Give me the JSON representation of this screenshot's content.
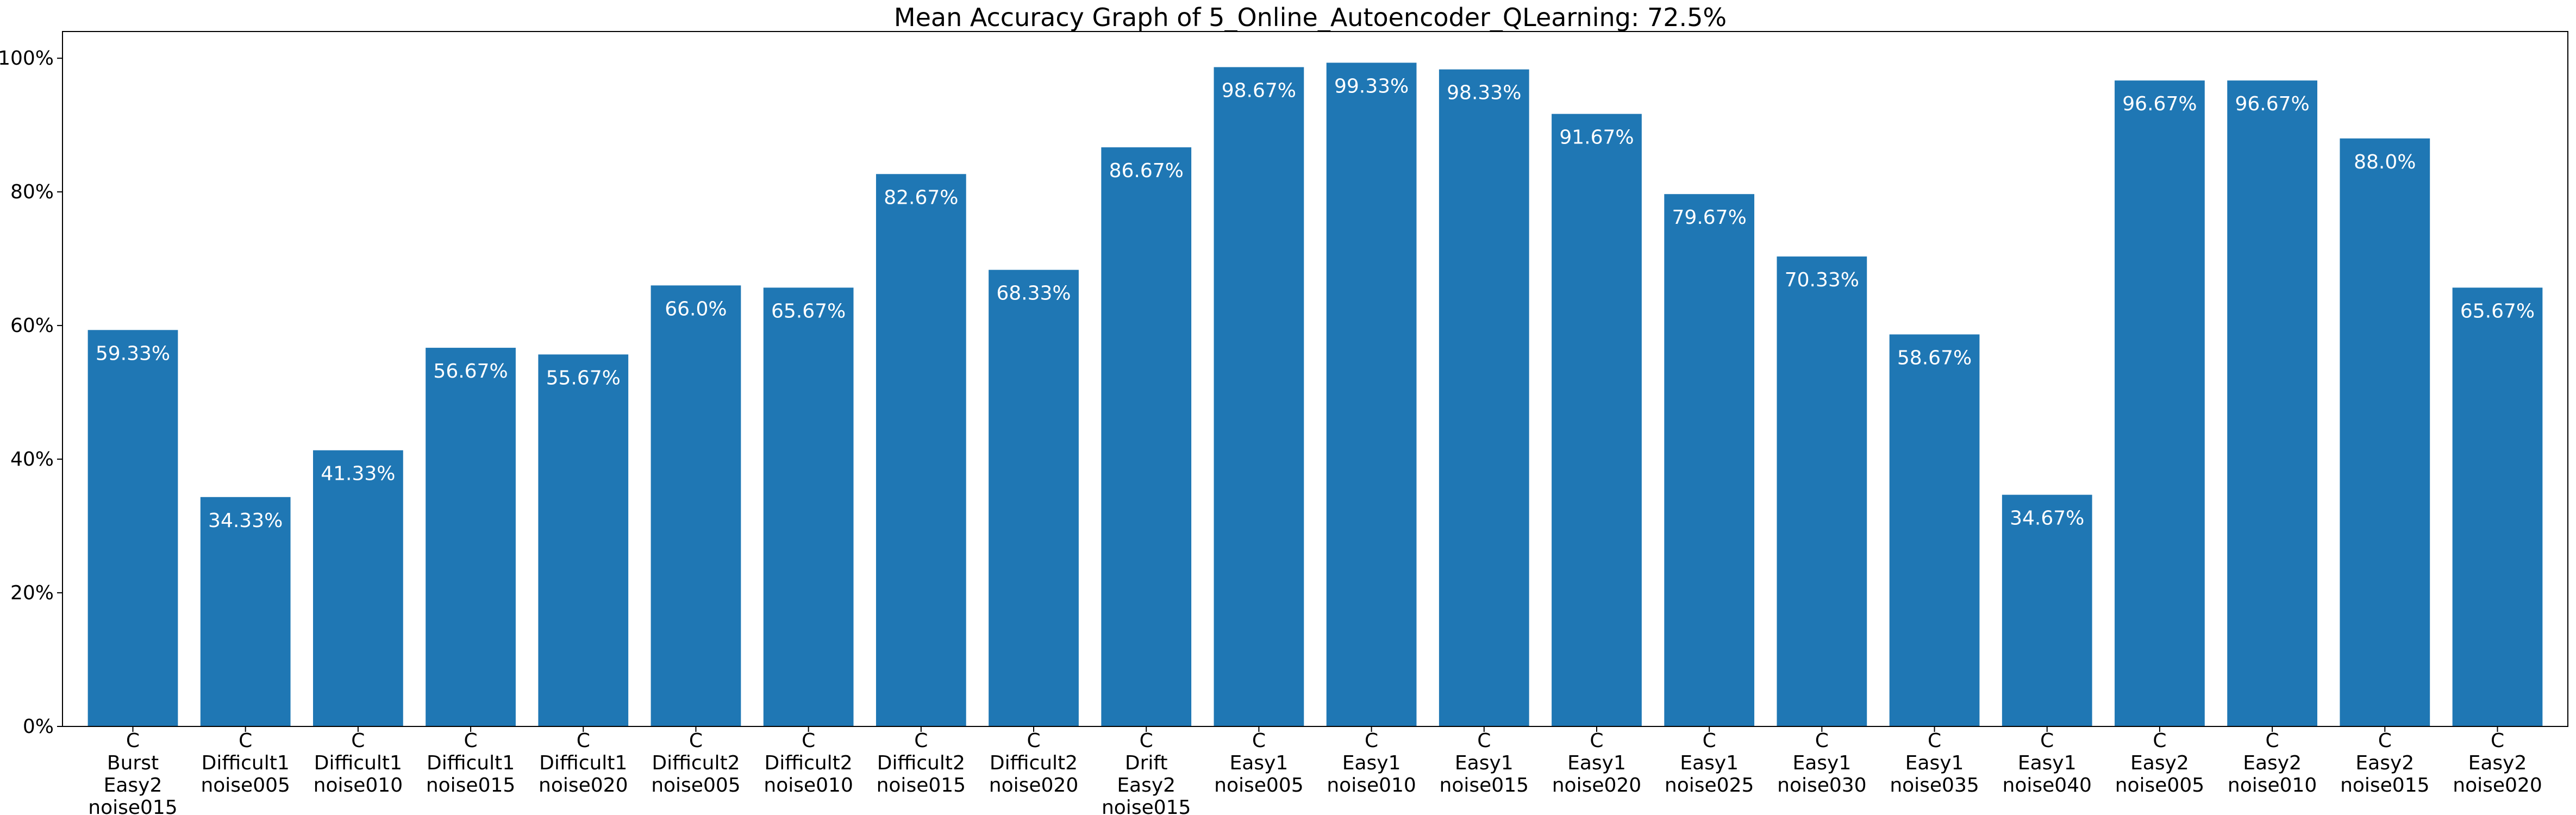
{
  "colors": {
    "bar": "#1f77b4",
    "axis": "#000000",
    "background": "#ffffff",
    "data_label": "#ffffff"
  },
  "chart_data": {
    "type": "bar",
    "title": "Mean Accuracy Graph of 5_Online_Autoencoder_QLearning: 72.5%",
    "xlabel": "",
    "ylabel": "",
    "ylim": [
      0,
      104
    ],
    "grid": false,
    "legend": "none",
    "y_ticks": [
      {
        "value": 0,
        "label": "0%"
      },
      {
        "value": 20,
        "label": "20%"
      },
      {
        "value": 40,
        "label": "40%"
      },
      {
        "value": 60,
        "label": "60%"
      },
      {
        "value": 80,
        "label": "80%"
      },
      {
        "value": 100,
        "label": "100%"
      }
    ],
    "categories": [
      [
        "C",
        "Burst",
        "Easy2",
        "noise015"
      ],
      [
        "C",
        "Difficult1",
        "noise005"
      ],
      [
        "C",
        "Difficult1",
        "noise010"
      ],
      [
        "C",
        "Difficult1",
        "noise015"
      ],
      [
        "C",
        "Difficult1",
        "noise020"
      ],
      [
        "C",
        "Difficult2",
        "noise005"
      ],
      [
        "C",
        "Difficult2",
        "noise010"
      ],
      [
        "C",
        "Difficult2",
        "noise015"
      ],
      [
        "C",
        "Difficult2",
        "noise020"
      ],
      [
        "C",
        "Drift",
        "Easy2",
        "noise015"
      ],
      [
        "C",
        "Easy1",
        "noise005"
      ],
      [
        "C",
        "Easy1",
        "noise010"
      ],
      [
        "C",
        "Easy1",
        "noise015"
      ],
      [
        "C",
        "Easy1",
        "noise020"
      ],
      [
        "C",
        "Easy1",
        "noise025"
      ],
      [
        "C",
        "Easy1",
        "noise030"
      ],
      [
        "C",
        "Easy1",
        "noise035"
      ],
      [
        "C",
        "Easy1",
        "noise040"
      ],
      [
        "C",
        "Easy2",
        "noise005"
      ],
      [
        "C",
        "Easy2",
        "noise010"
      ],
      [
        "C",
        "Easy2",
        "noise015"
      ],
      [
        "C",
        "Easy2",
        "noise020"
      ]
    ],
    "values": [
      59.33,
      34.33,
      41.33,
      56.67,
      55.67,
      66.0,
      65.67,
      82.67,
      68.33,
      86.67,
      98.67,
      99.33,
      98.33,
      91.67,
      79.67,
      70.33,
      58.67,
      34.67,
      96.67,
      96.67,
      88.0,
      65.67
    ],
    "value_labels": [
      "59.33%",
      "34.33%",
      "41.33%",
      "56.67%",
      "55.67%",
      "66.0%",
      "65.67%",
      "82.67%",
      "68.33%",
      "86.67%",
      "98.67%",
      "99.33%",
      "98.33%",
      "91.67%",
      "79.67%",
      "70.33%",
      "58.67%",
      "34.67%",
      "96.67%",
      "96.67%",
      "88.0%",
      "65.67%"
    ]
  }
}
